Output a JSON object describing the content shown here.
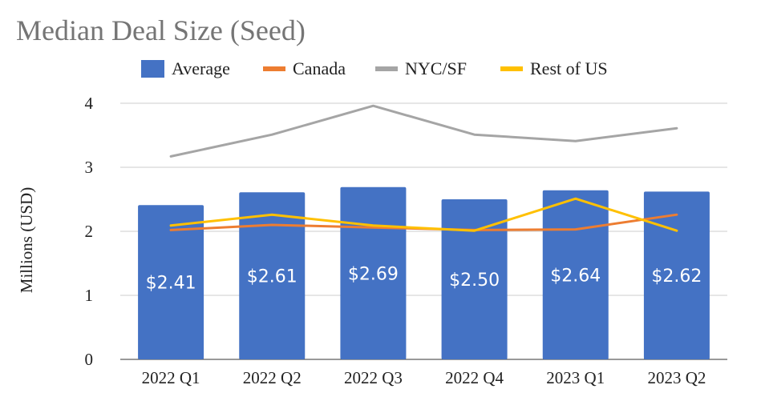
{
  "chart_data": {
    "type": "bar",
    "title": "Median Deal Size (Seed)",
    "xlabel": "",
    "ylabel": "Millions (USD)",
    "ylim": [
      0,
      4
    ],
    "yticks": [
      "0",
      "1",
      "2",
      "3",
      "4"
    ],
    "grid": true,
    "legend_position": "top",
    "categories": [
      "2022 Q1",
      "2022 Q2",
      "2022 Q3",
      "2022 Q4",
      "2023 Q1",
      "2023 Q2"
    ],
    "bar_series": {
      "name": "Average",
      "color": "#4472C4",
      "values": [
        2.41,
        2.61,
        2.69,
        2.5,
        2.64,
        2.62
      ],
      "data_labels": [
        "$2.41",
        "$2.61",
        "$2.69",
        "$2.50",
        "$2.64",
        "$2.62"
      ]
    },
    "line_series": [
      {
        "name": "Canada",
        "color": "#ED7D31",
        "values": [
          2.02,
          2.1,
          2.06,
          2.02,
          2.03,
          2.26
        ]
      },
      {
        "name": "NYC/SF",
        "color": "#A5A5A5",
        "values": [
          3.17,
          3.51,
          3.96,
          3.51,
          3.41,
          3.61
        ]
      },
      {
        "name": "Rest of US",
        "color": "#FFC000",
        "values": [
          2.09,
          2.26,
          2.09,
          2.01,
          2.51,
          2.01
        ]
      }
    ]
  }
}
